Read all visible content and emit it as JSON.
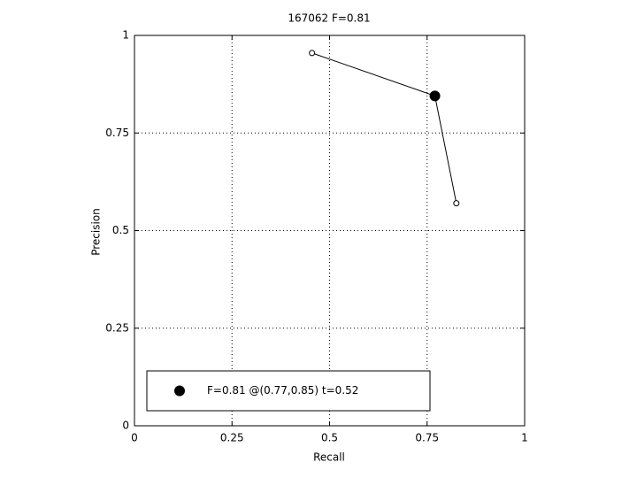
{
  "chart_data": {
    "type": "line",
    "title": "167062 F=0.81",
    "xlabel": "Recall",
    "ylabel": "Precision",
    "xlim": [
      0,
      1
    ],
    "ylim": [
      0,
      1
    ],
    "xticks": [
      0,
      0.25,
      0.5,
      0.75,
      1
    ],
    "yticks": [
      0,
      0.25,
      0.5,
      0.75,
      1
    ],
    "grid": true,
    "legend": "lower left",
    "series": [
      {
        "color": "#000000",
        "marker": "open",
        "x": [
          0.455,
          0.77,
          0.825
        ],
        "values": [
          0.955,
          0.845,
          0.57
        ]
      },
      {
        "name": "F=0.81 @(0.77,0.85) t=0.52",
        "color": "#000000",
        "marker": "filled",
        "x": [
          0.77
        ],
        "values": [
          0.845
        ]
      }
    ]
  }
}
